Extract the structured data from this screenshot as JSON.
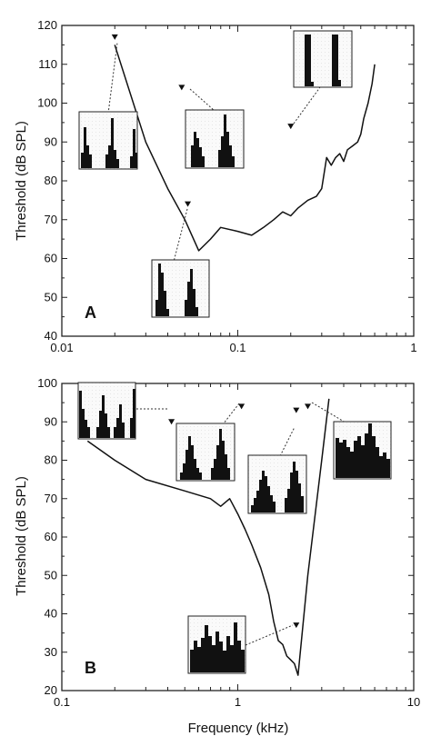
{
  "chart_data": [
    {
      "type": "line",
      "panel_label": "A",
      "xlabel": "",
      "ylabel": "Threshold (dB SPL)",
      "xscale": "log",
      "xlim": [
        0.01,
        1
      ],
      "ylim": [
        40,
        120
      ],
      "xticks": [
        0.01,
        0.1,
        1
      ],
      "xtick_labels": [
        "0.01",
        "0.1",
        "1"
      ],
      "yticks": [
        40,
        50,
        60,
        70,
        80,
        90,
        100,
        110,
        120
      ],
      "ytick_labels": [
        "40",
        "50",
        "60",
        "70",
        "80",
        "90",
        "100",
        "110",
        "120"
      ],
      "grid": false,
      "series": [
        {
          "x": [
            0.02,
            0.03,
            0.04,
            0.05,
            0.06,
            0.07,
            0.08,
            0.1,
            0.12,
            0.14,
            0.16,
            0.18,
            0.2,
            0.22,
            0.25,
            0.28,
            0.3,
            0.32,
            0.34,
            0.36,
            0.38,
            0.4,
            0.42,
            0.45,
            0.48,
            0.5,
            0.52,
            0.55,
            0.58,
            0.6
          ],
          "y": [
            115,
            90,
            78,
            70,
            62,
            65,
            68,
            67,
            66,
            68,
            70,
            72,
            71,
            73,
            75,
            76,
            78,
            86,
            84,
            86,
            87,
            85,
            88,
            89,
            90,
            92,
            96,
            100,
            105,
            110
          ]
        }
      ],
      "markers": [
        {
          "x": 0.02,
          "y": 117
        },
        {
          "x": 0.048,
          "y": 104
        },
        {
          "x": 0.052,
          "y": 74
        },
        {
          "x": 0.2,
          "y": 94
        }
      ]
    },
    {
      "type": "line",
      "panel_label": "B",
      "xlabel": "Frequency (kHz)",
      "ylabel": "Threshold (dB SPL)",
      "xscale": "log",
      "xlim": [
        0.1,
        10
      ],
      "ylim": [
        20,
        100
      ],
      "xticks": [
        0.1,
        1,
        10
      ],
      "xtick_labels": [
        "0.1",
        "1",
        "10"
      ],
      "yticks": [
        20,
        30,
        40,
        50,
        60,
        70,
        80,
        90,
        100
      ],
      "ytick_labels": [
        "20",
        "30",
        "40",
        "50",
        "60",
        "70",
        "80",
        "90",
        "100"
      ],
      "grid": false,
      "series": [
        {
          "x": [
            0.14,
            0.2,
            0.3,
            0.5,
            0.7,
            0.8,
            0.9,
            1.0,
            1.1,
            1.2,
            1.35,
            1.5,
            1.6,
            1.7,
            1.8,
            1.9,
            2.0,
            2.1,
            2.2,
            2.5,
            3.0,
            3.3
          ],
          "y": [
            85,
            80,
            75,
            72,
            70,
            68,
            70,
            66,
            62,
            58,
            52,
            45,
            38,
            33,
            32,
            29,
            28,
            27,
            24,
            50,
            80,
            96
          ]
        }
      ],
      "markers": [
        {
          "x": 0.42,
          "y": 90
        },
        {
          "x": 1.05,
          "y": 94
        },
        {
          "x": 2.15,
          "y": 93
        },
        {
          "x": 2.15,
          "y": 37
        },
        {
          "x": 2.5,
          "y": 94
        }
      ]
    }
  ]
}
